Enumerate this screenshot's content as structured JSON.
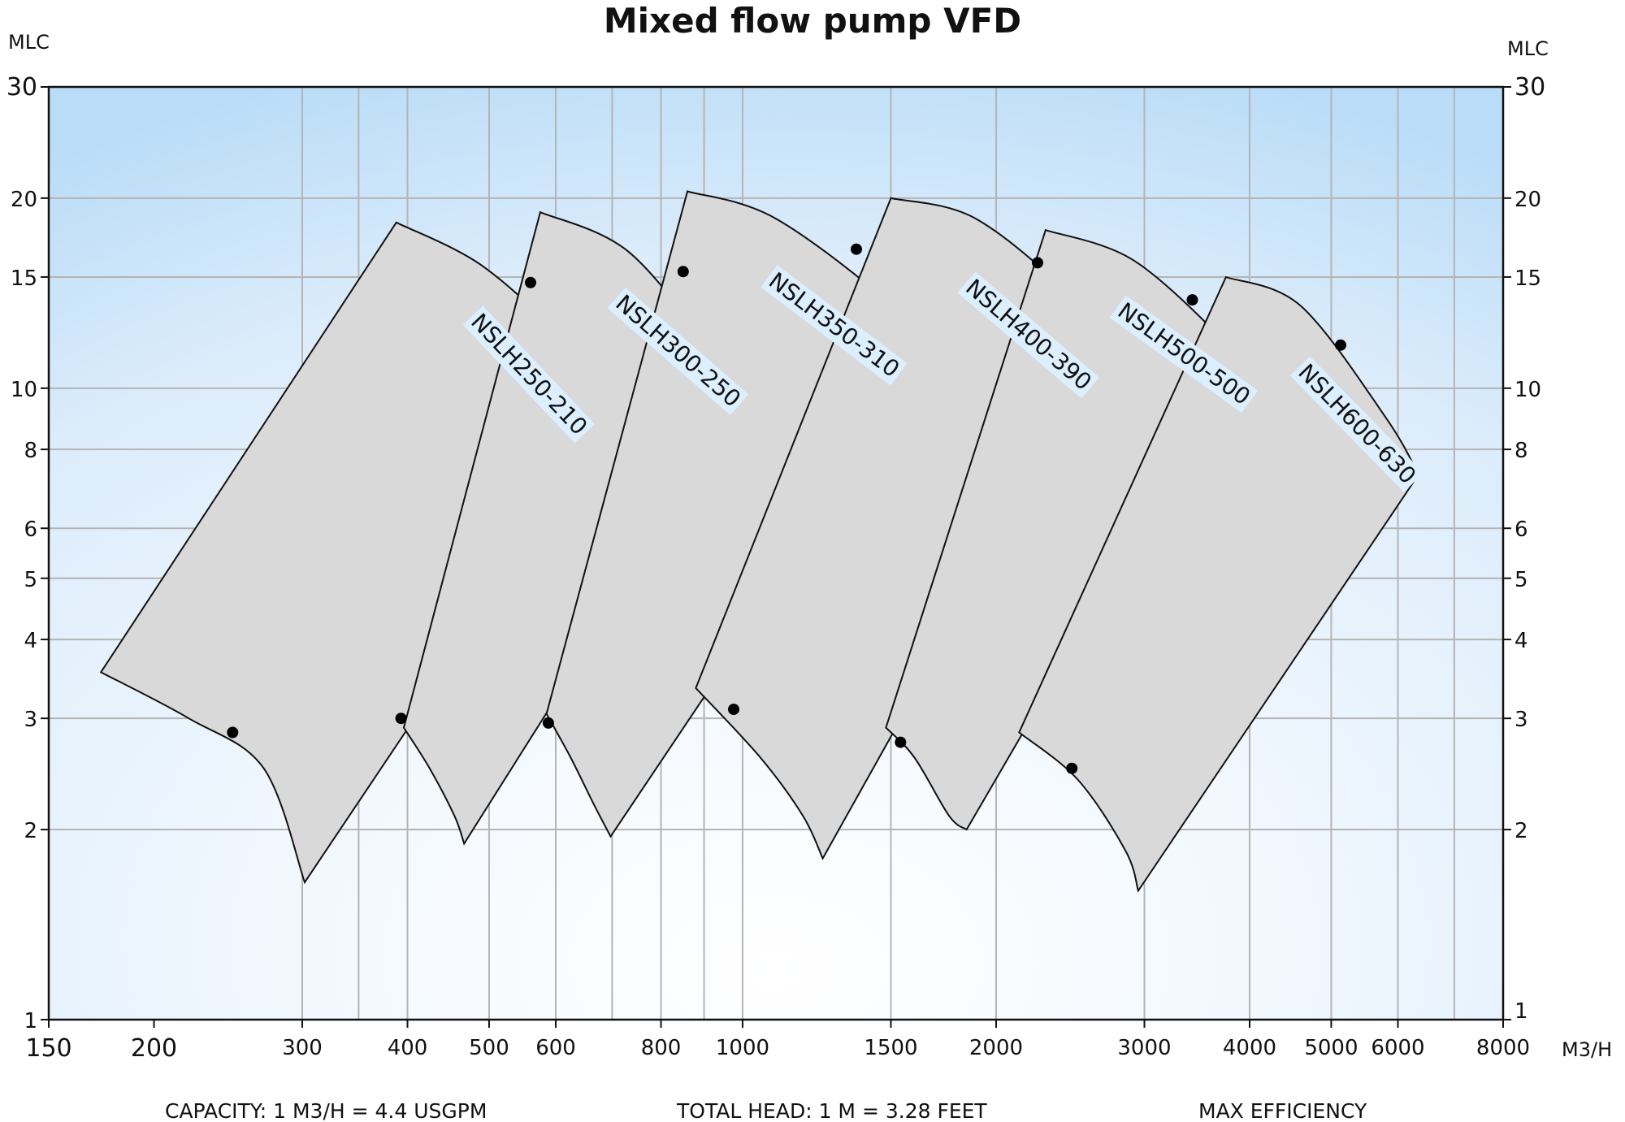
{
  "chart_data": {
    "type": "scatter",
    "title": "Mixed flow pump VFD",
    "ylabel_left": "MLC",
    "ylabel_right": "MLC",
    "xlabel": "M3/H",
    "x_scale": "log",
    "y_scale": "log",
    "xlim": [
      150,
      8000
    ],
    "ylim": [
      1,
      30
    ],
    "x_ticks": [
      150,
      200,
      300,
      400,
      500,
      600,
      800,
      1000,
      1500,
      2000,
      3000,
      4000,
      5000,
      6000,
      8000
    ],
    "x_tick_labels": [
      "150",
      "200",
      "300",
      "400",
      "500",
      "600",
      "800",
      "1000",
      "1500",
      "2000",
      "3000",
      "4000",
      "5000",
      "6000",
      "8000"
    ],
    "x_gridlines": [
      300,
      350,
      400,
      500,
      600,
      700,
      800,
      900,
      1000,
      1500,
      2000,
      3000,
      4000,
      5000,
      6000,
      7000
    ],
    "y_ticks": [
      1,
      2,
      3,
      4,
      5,
      6,
      8,
      10,
      15,
      20,
      30
    ],
    "y_tick_labels": [
      "1",
      "2",
      "3",
      "4",
      "5",
      "6",
      "8",
      "10",
      "15",
      "20",
      "30"
    ],
    "grid": true,
    "footer": {
      "capacity": "CAPACITY: 1 M3/H = 4.4 USGPM",
      "total_head": "TOTAL HEAD: 1 M = 3.28 FEET",
      "efficiency": "MAX EFFICIENCY"
    },
    "series": [
      {
        "name": "NSLH250-210",
        "envelope": {
          "low_left": [
            173,
            3.55
          ],
          "min_speed_mid": [
            [
              220,
              3.0
            ],
            [
              270,
              2.5
            ]
          ],
          "low_right": [
            302,
            1.65
          ],
          "high_left": [
            388,
            18.3
          ],
          "max_speed_mid": [
            [
              495,
              15.5
            ],
            [
              620,
              11.5
            ]
          ],
          "high_right": [
            680,
            8.3
          ]
        },
        "bep_points": [
          [
            248,
            2.85
          ],
          [
            393,
            3.0
          ],
          [
            560,
            14.7
          ]
        ]
      },
      {
        "name": "NSLH300-250",
        "envelope": {
          "low_left": [
            396,
            2.9
          ],
          "min_speed_mid": [
            [
              425,
              2.5
            ],
            [
              455,
              2.1
            ]
          ],
          "low_right": [
            467,
            1.9
          ],
          "high_left": [
            575,
            19.0
          ],
          "max_speed_mid": [
            [
              730,
              16.5
            ],
            [
              920,
              11.5
            ]
          ],
          "high_right": [
            1015,
            9.8
          ]
        },
        "bep_points": [
          [
            588,
            2.95
          ],
          [
            850,
            15.3
          ]
        ]
      },
      {
        "name": "NSLH350-310",
        "envelope": {
          "low_left": [
            585,
            3.05
          ],
          "min_speed_mid": [
            [
              625,
              2.6
            ],
            [
              665,
              2.2
            ]
          ],
          "low_right": [
            697,
            1.95
          ],
          "high_left": [
            860,
            20.5
          ],
          "max_speed_mid": [
            [
              1100,
              18.5
            ],
            [
              1550,
              13.0
            ]
          ],
          "high_right": [
            1640,
            10.7
          ]
        },
        "bep_points": [
          [
            976,
            3.1
          ],
          [
            1365,
            16.6
          ]
        ]
      },
      {
        "name": "NSLH400-390",
        "envelope": {
          "low_left": [
            880,
            3.35
          ],
          "min_speed_mid": [
            [
              1050,
              2.6
            ],
            [
              1180,
              2.1
            ]
          ],
          "low_right": [
            1245,
            1.8
          ],
          "high_left": [
            1500,
            20.0
          ],
          "max_speed_mid": [
            [
              1900,
              18.5
            ],
            [
              2500,
              13.5
            ]
          ],
          "high_right": [
            2620,
            10.6
          ]
        },
        "bep_points": [
          [
            1540,
            2.75
          ],
          [
            2240,
            15.8
          ]
        ]
      },
      {
        "name": "NSLH500-500",
        "envelope": {
          "low_left": [
            1480,
            2.9
          ],
          "min_speed_mid": [
            [
              1600,
              2.6
            ],
            [
              1760,
              2.1
            ]
          ],
          "low_right": [
            1845,
            2.0
          ],
          "high_left": [
            2290,
            17.8
          ],
          "max_speed_mid": [
            [
              2900,
              16.0
            ],
            [
              3700,
              12.0
            ]
          ],
          "high_right": [
            3850,
            10.8
          ]
        },
        "bep_points": [
          [
            2460,
            2.5
          ],
          [
            3420,
            13.8
          ]
        ]
      },
      {
        "name": "NSLH600-630",
        "envelope": {
          "low_left": [
            2130,
            2.85
          ],
          "min_speed_mid": [
            [
              2500,
              2.4
            ],
            [
              2850,
              1.85
            ]
          ],
          "low_right": [
            2950,
            1.6
          ],
          "high_left": [
            3750,
            15.0
          ],
          "max_speed_mid": [
            [
              4600,
              13.5
            ],
            [
              5800,
              9.0
            ]
          ],
          "high_right": [
            6350,
            7.3
          ]
        },
        "bep_points": [
          [
            5130,
            11.7
          ]
        ]
      }
    ]
  }
}
